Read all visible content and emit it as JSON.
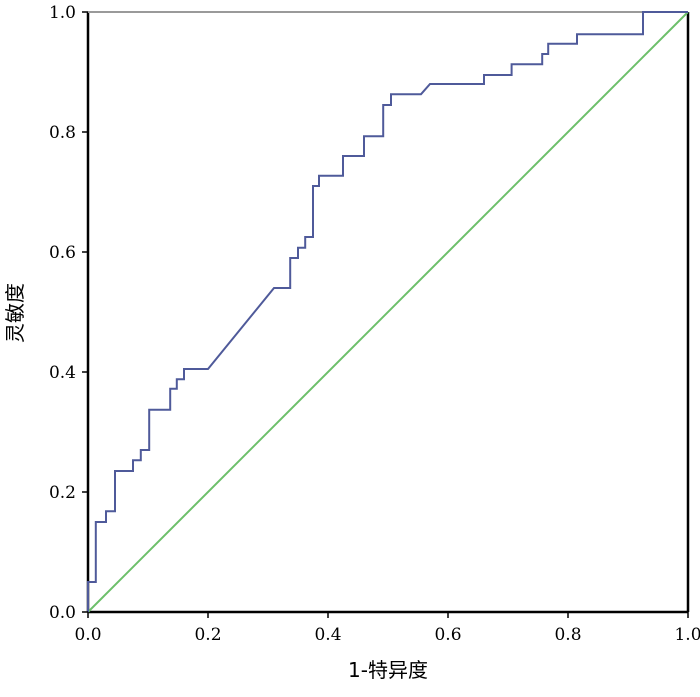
{
  "chart_data": {
    "type": "line",
    "title": "",
    "xlabel": "1-特异度",
    "ylabel": "灵敏度",
    "xlim": [
      0,
      1
    ],
    "ylim": [
      0,
      1
    ],
    "xticks": [
      "0.0",
      "0.2",
      "0.4",
      "0.6",
      "0.8",
      "1.0"
    ],
    "yticks": [
      "0.0",
      "0.2",
      "0.4",
      "0.6",
      "0.8",
      "1.0"
    ],
    "grid": false,
    "colors": {
      "roc": "#4f5a9a",
      "reference": "#6cbf6a",
      "frame": "#000000",
      "top_border": "#9a9a9a"
    },
    "series": [
      {
        "role": "roc-curve",
        "x": [
          0.0,
          0.0,
          0.013,
          0.013,
          0.03,
          0.03,
          0.045,
          0.045,
          0.075,
          0.075,
          0.088,
          0.088,
          0.102,
          0.102,
          0.11,
          0.11,
          0.137,
          0.137,
          0.148,
          0.148,
          0.16,
          0.16,
          0.17,
          0.17,
          0.2,
          0.31,
          0.31,
          0.337,
          0.337,
          0.35,
          0.35,
          0.362,
          0.362,
          0.375,
          0.375,
          0.385,
          0.385,
          0.4,
          0.4,
          0.425,
          0.425,
          0.46,
          0.46,
          0.492,
          0.492,
          0.505,
          0.505,
          0.555,
          0.57,
          0.66,
          0.66,
          0.706,
          0.706,
          0.757,
          0.757,
          0.767,
          0.767,
          0.815,
          0.815,
          0.925,
          0.925,
          1.0
        ],
        "y": [
          0.0,
          0.05,
          0.05,
          0.15,
          0.15,
          0.168,
          0.168,
          0.235,
          0.235,
          0.253,
          0.253,
          0.27,
          0.27,
          0.337,
          0.337,
          0.337,
          0.337,
          0.372,
          0.372,
          0.388,
          0.388,
          0.405,
          0.405,
          0.405,
          0.405,
          0.54,
          0.54,
          0.54,
          0.59,
          0.59,
          0.607,
          0.607,
          0.625,
          0.625,
          0.71,
          0.71,
          0.727,
          0.727,
          0.727,
          0.727,
          0.76,
          0.76,
          0.793,
          0.793,
          0.845,
          0.845,
          0.863,
          0.863,
          0.88,
          0.88,
          0.895,
          0.895,
          0.913,
          0.913,
          0.93,
          0.93,
          0.947,
          0.947,
          0.963,
          0.963,
          1.0,
          1.0
        ]
      },
      {
        "role": "reference-line",
        "x": [
          0,
          1
        ],
        "y": [
          0,
          1
        ]
      }
    ]
  }
}
